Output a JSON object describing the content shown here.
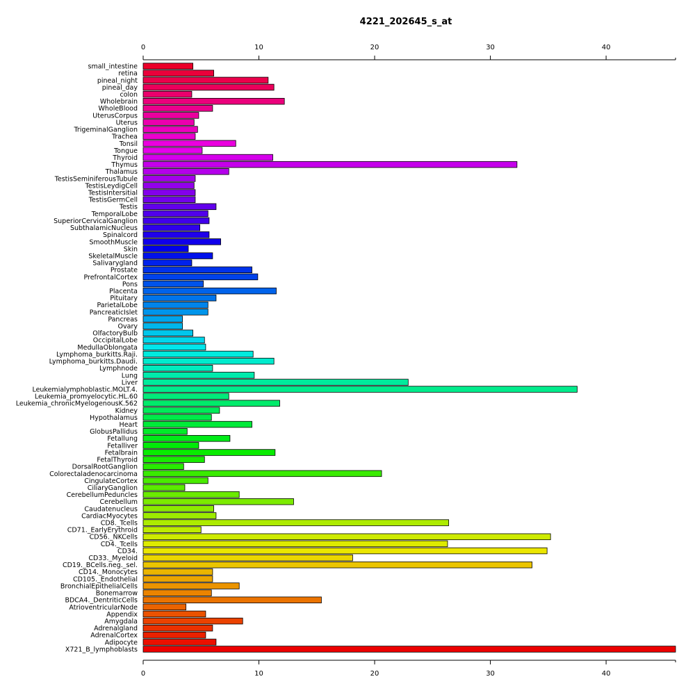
{
  "chart_data": {
    "type": "bar",
    "orientation": "horizontal",
    "title": "4221_202645_s_at",
    "xlabel": "",
    "ylabel": "",
    "xlim": [
      0,
      46
    ],
    "x_ticks": [
      0,
      10,
      20,
      30,
      40
    ],
    "axes": [
      "top",
      "bottom"
    ],
    "grid": false,
    "legend": "none",
    "bar_border_color": "#000000",
    "color_scheme": "rainbow from red (top) through magenta, blue, cyan, green, yellow, orange to red (bottom)",
    "categories": [
      "small_intestine",
      "retina",
      "pineal_night",
      "pineal_day",
      "colon",
      "Wholebrain",
      "WholeBlood",
      "UterusCorpus",
      "Uterus",
      "TrigeminalGanglion",
      "Trachea",
      "Tonsil",
      "Tongue",
      "Thyroid",
      "Thymus",
      "Thalamus",
      "TestisSeminiferousTubule",
      "TestisLeydigCell",
      "TestisIntersitial",
      "TestisGermCell",
      "Testis",
      "TemporalLobe",
      "SuperiorCervicalGanglion",
      "SubthalamicNucleus",
      "Spinalcord",
      "SmoothMuscle",
      "Skin",
      "SkeletalMuscle",
      "Salivarygland",
      "Prostate",
      "PrefrontalCortex",
      "Pons",
      "Placenta",
      "Pituitary",
      "ParietalLobe",
      "PancreaticIslet",
      "Pancreas",
      "Ovary",
      "OlfactoryBulb",
      "OccipitalLobe",
      "MedullaOblongata",
      "Lymphoma_burkitts.Raji.",
      "Lymphoma_burkitts.Daudi.",
      "Lymphnode",
      "Lung",
      "Liver",
      "Leukemialymphoblastic.MOLT.4.",
      "Leukemia_promyelocytic.HL.60",
      "Leukemia_chronicMyelogenousK.562",
      "Kidney",
      "Hypothalamus",
      "Heart",
      "GlobusPallidus",
      "Fetallung",
      "Fetalliver",
      "Fetalbrain",
      "FetalThyroid",
      "DorsalRootGanglion",
      "Colorectaladenocarcinoma",
      "CingulateCortex",
      "CiliaryGanglion",
      "CerebellumPeduncles",
      "Cerebellum",
      "Caudatenucleus",
      "CardiacMyocytes",
      "CD8._Tcells",
      "CD71._EarlyErythroid",
      "CD56._NKCells",
      "CD4._Tcells",
      "CD34.",
      "CD33._Myeloid",
      "CD19._BCells.neg._sel.",
      "CD14._Monocytes",
      "CD105._Endothelial",
      "BronchialEpithelialCells",
      "Bonemarrow",
      "BDCA4._DentriticCells",
      "AtrioventricularNode",
      "Appendix",
      "Amygdala",
      "Adrenalgland",
      "AdrenalCortex",
      "Adipocyte",
      "X721_B_lymphoblasts"
    ],
    "values": [
      4.3,
      6.1,
      10.8,
      11.3,
      4.2,
      12.2,
      6.0,
      4.8,
      4.4,
      4.7,
      4.5,
      8.0,
      5.1,
      11.2,
      32.3,
      7.4,
      4.5,
      4.4,
      4.5,
      4.5,
      6.3,
      5.6,
      5.7,
      4.9,
      5.7,
      6.7,
      3.9,
      6.0,
      4.2,
      9.4,
      9.9,
      5.2,
      11.5,
      6.3,
      5.6,
      5.6,
      3.4,
      3.4,
      4.3,
      5.3,
      5.4,
      9.5,
      11.3,
      6.0,
      9.6,
      22.9,
      37.5,
      7.4,
      11.8,
      6.6,
      5.9,
      9.4,
      3.8,
      7.5,
      4.8,
      11.4,
      5.3,
      3.5,
      20.6,
      5.6,
      3.6,
      8.3,
      13.0,
      6.1,
      6.3,
      26.4,
      5.0,
      35.2,
      26.3,
      34.9,
      18.1,
      33.6,
      6.0,
      6.0,
      8.3,
      5.9,
      15.4,
      3.7,
      5.4,
      8.6,
      6.0,
      5.4,
      6.3,
      46.0
    ]
  }
}
